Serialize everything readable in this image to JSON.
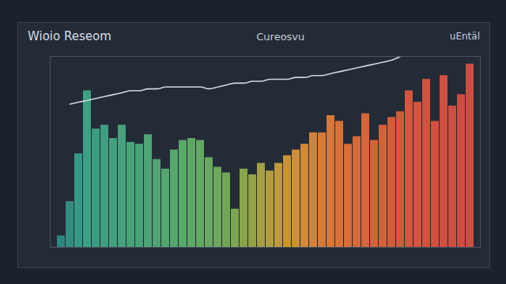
{
  "chart_data": {
    "type": "bar",
    "title": "Wioio Reseom",
    "subtitle": "Cureosvu",
    "annotations": [
      "uEntäl"
    ],
    "categories": [
      null,
      null,
      null,
      null,
      null,
      null,
      null,
      null,
      null,
      null,
      null,
      null,
      null,
      null,
      null,
      null,
      null,
      null,
      null,
      null,
      null,
      null,
      null,
      null,
      null,
      null,
      null,
      null,
      null,
      null,
      null,
      null,
      null,
      null,
      null,
      null,
      null,
      null,
      null,
      null,
      null,
      null,
      null,
      null,
      null,
      null,
      null,
      null
    ],
    "series": [
      {
        "type": "bar",
        "values": [
          6,
          24,
          49,
          82,
          62,
          64,
          57,
          64,
          55,
          54,
          59,
          46,
          41,
          51,
          56,
          57,
          56,
          47,
          42,
          39,
          20,
          41,
          38,
          44,
          40,
          44,
          48,
          51,
          54,
          60,
          60,
          69,
          66,
          54,
          58,
          70,
          56,
          64,
          68,
          71,
          82,
          76,
          88,
          66,
          90,
          74,
          80,
          96
        ],
        "colors": [
          "#2e8f86",
          "#34998a",
          "#3aa58c",
          "#41ad8c",
          "#3fa88a",
          "#44ab88",
          "#47ad86",
          "#4aae84",
          "#4caf82",
          "#4fb07f",
          "#52b27c",
          "#55b379",
          "#58b476",
          "#5cb573",
          "#60b670",
          "#65b66c",
          "#6ab668",
          "#70b664",
          "#76b660",
          "#7cb55c",
          "#86b456",
          "#93b24f",
          "#a2b04a",
          "#b2ad45",
          "#c1aa40",
          "#cfa63d",
          "#d9a03b",
          "#e09a3a",
          "#e5933a",
          "#e88c3a",
          "#ea853a",
          "#eb7f3a",
          "#ec7a3a",
          "#ec753a",
          "#ec703a",
          "#eb6c3a",
          "#ea683b",
          "#e9653b",
          "#e8623c",
          "#e75f3c",
          "#e65c3d",
          "#e55a3e",
          "#e4583f",
          "#e35640",
          "#e25441",
          "#e15342",
          "#e05243",
          "#df5144"
        ]
      },
      {
        "type": "line",
        "color": "#cfd6de",
        "values": [
          null,
          75,
          76,
          77,
          78,
          79,
          80,
          81,
          82,
          82,
          83,
          83,
          84,
          84,
          84,
          84,
          84,
          83,
          84,
          85,
          86,
          86,
          87,
          87,
          88,
          88,
          88,
          89,
          89,
          90,
          90,
          91,
          92,
          93,
          94,
          95,
          96,
          97,
          98,
          100,
          null,
          null,
          null,
          null,
          null,
          null,
          null,
          null
        ]
      }
    ],
    "ylim": [
      0,
      100
    ],
    "yticks": [],
    "grid": false,
    "tick_labels": false
  }
}
